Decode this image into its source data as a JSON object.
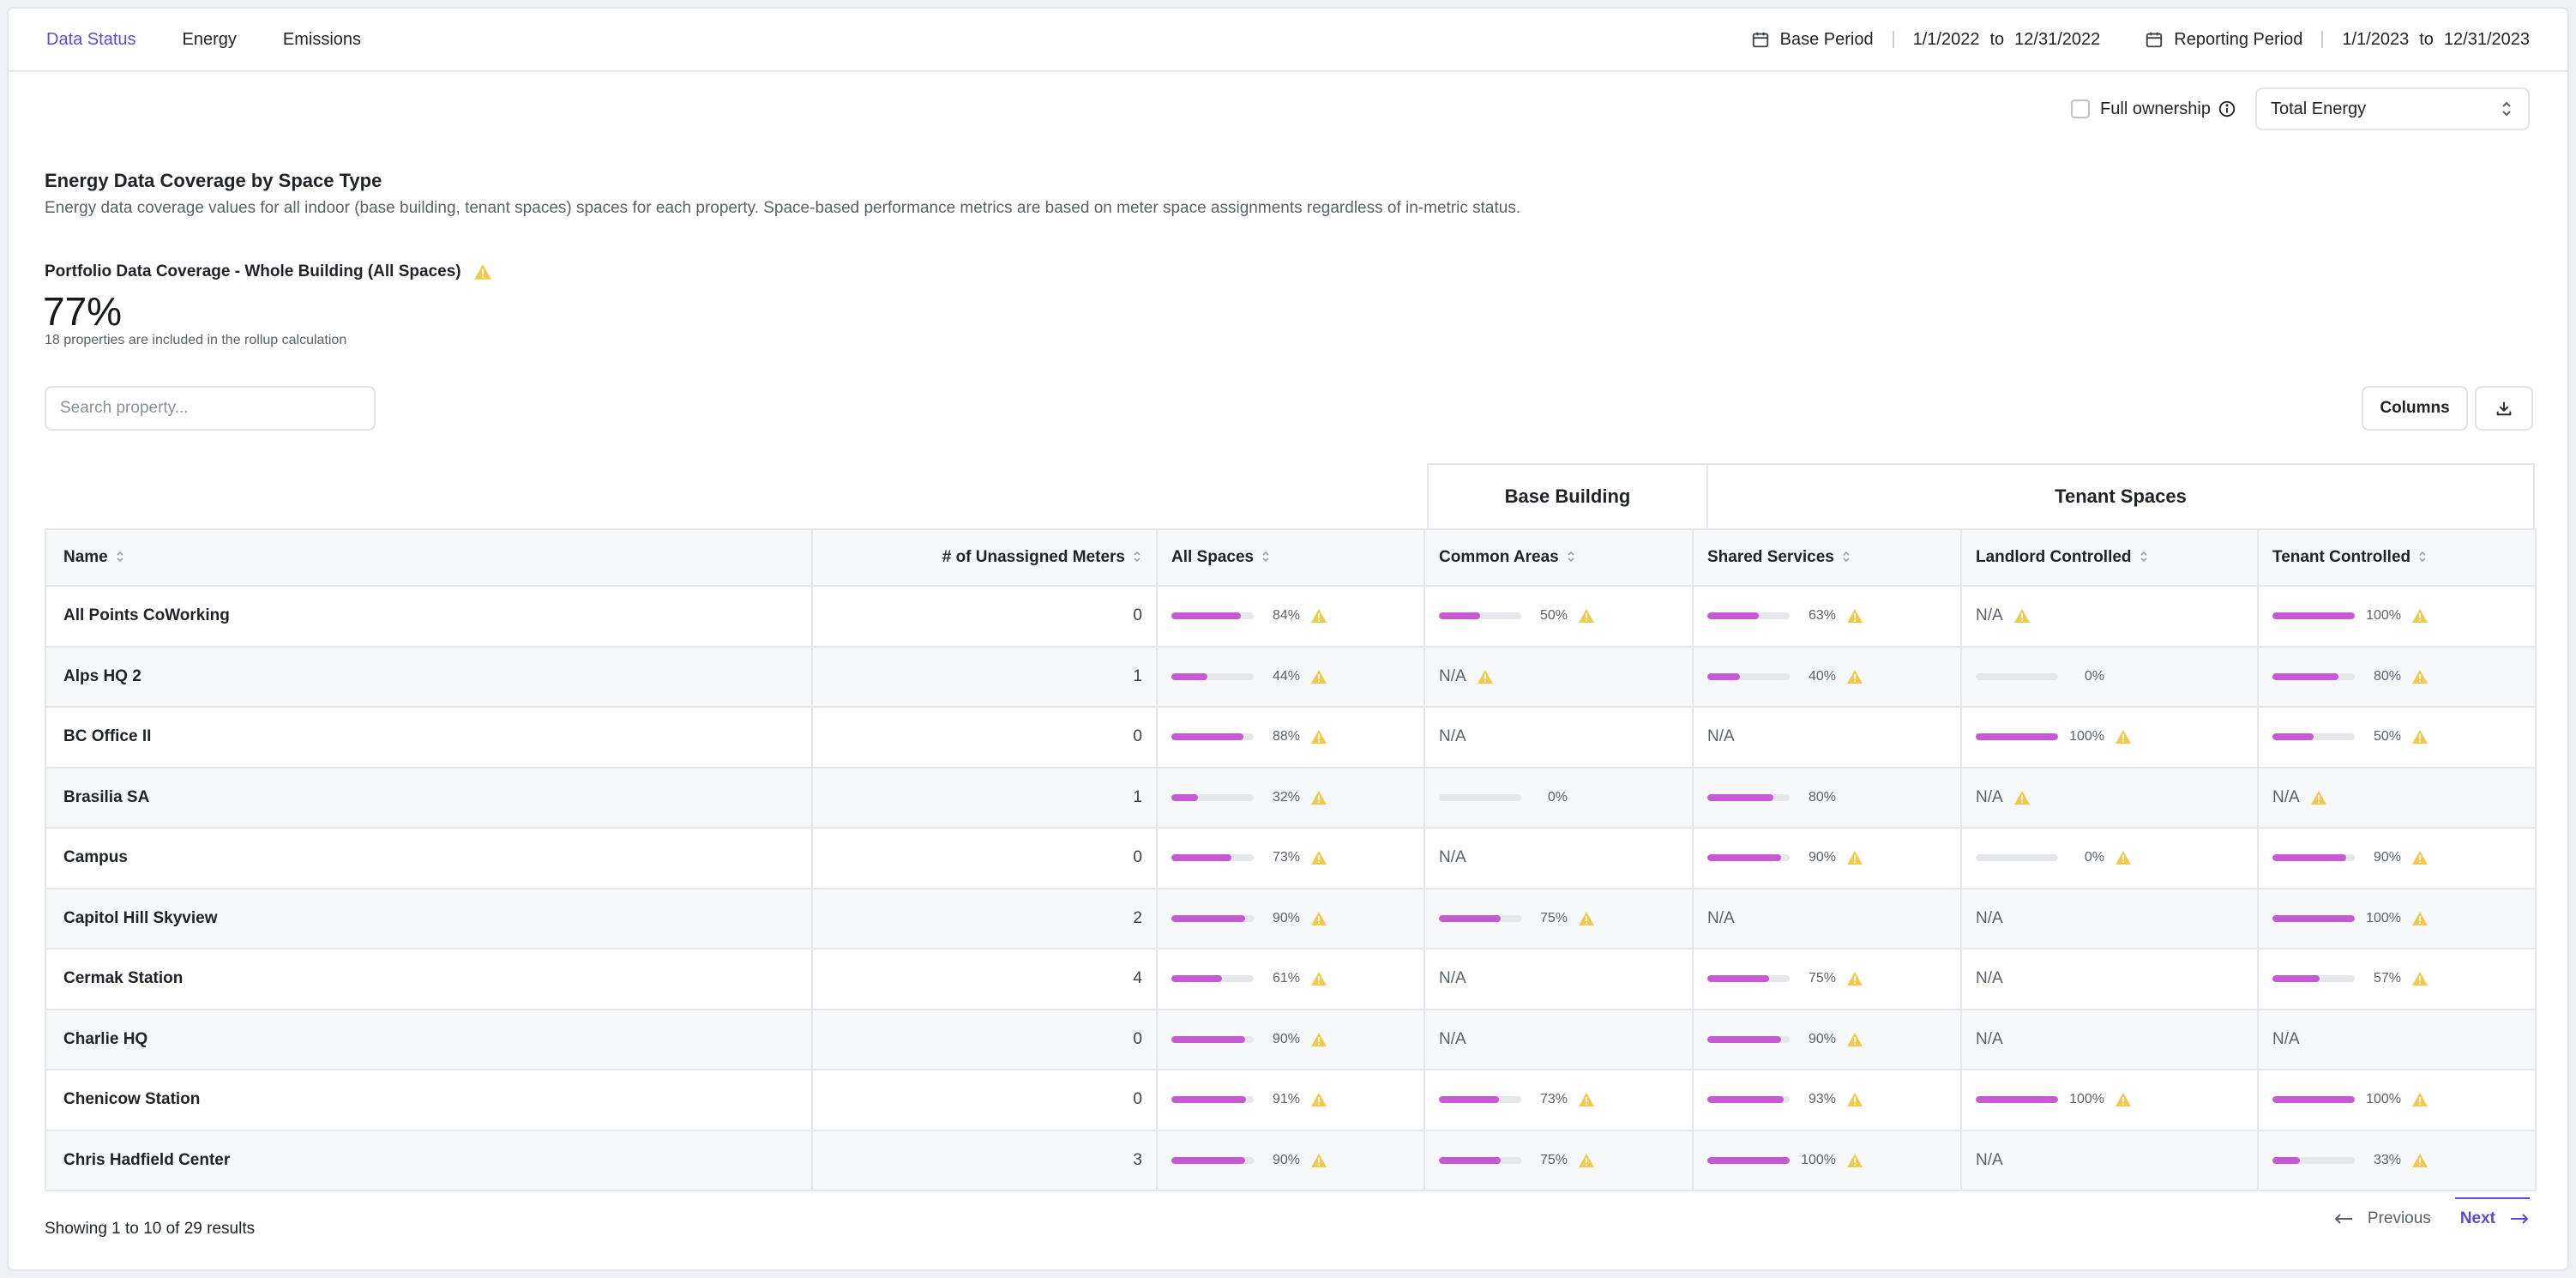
{
  "nav": {
    "tabs": [
      {
        "label": "Data Status",
        "active": true
      },
      {
        "label": "Energy",
        "active": false
      },
      {
        "label": "Emissions",
        "active": false
      }
    ],
    "base_period": {
      "label": "Base Period",
      "from": "1/1/2022",
      "to_word": "to",
      "to": "12/31/2022"
    },
    "reporting_period": {
      "label": "Reporting Period",
      "from": "1/1/2023",
      "to_word": "to",
      "to": "12/31/2023"
    }
  },
  "filters": {
    "full_ownership_label": "Full ownership",
    "full_ownership_checked": false,
    "metric_selected": "Total Energy"
  },
  "section": {
    "title": "Energy Data Coverage by Space Type",
    "description": "Energy data coverage values for all indoor (base building, tenant spaces) spaces for each property. Space-based performance metrics are based on meter space assignments regardless of in-metric status."
  },
  "portfolio": {
    "label": "Portfolio Data Coverage - Whole Building (All Spaces)",
    "value": "77%",
    "note": "18 properties are included in the rollup calculation"
  },
  "toolbar": {
    "search_placeholder": "Search property...",
    "columns_label": "Columns",
    "download_icon": "download-icon"
  },
  "table": {
    "groups": {
      "base_building": "Base Building",
      "tenant_spaces": "Tenant Spaces"
    },
    "headers": {
      "name": "Name",
      "unassigned": "# of Unassigned Meters",
      "all_spaces": "All Spaces",
      "common_areas": "Common Areas",
      "shared_services": "Shared Services",
      "landlord_controlled": "Landlord Controlled",
      "tenant_controlled": "Tenant Controlled"
    },
    "rows": [
      {
        "name": "All Points CoWorking",
        "unassigned": "0",
        "all": {
          "pct": 84,
          "warn": true
        },
        "common": {
          "pct": 50,
          "warn": true
        },
        "shared": {
          "pct": 63,
          "warn": true
        },
        "landlord": {
          "na": true,
          "warn": true
        },
        "tenant": {
          "pct": 100,
          "warn": true
        }
      },
      {
        "name": "Alps HQ 2",
        "unassigned": "1",
        "all": {
          "pct": 44,
          "warn": true
        },
        "common": {
          "na": true,
          "warn": true
        },
        "shared": {
          "pct": 40,
          "warn": true
        },
        "landlord": {
          "pct": 0,
          "warn": false
        },
        "tenant": {
          "pct": 80,
          "warn": true
        }
      },
      {
        "name": "BC Office II",
        "unassigned": "0",
        "all": {
          "pct": 88,
          "warn": true
        },
        "common": {
          "na": true,
          "warn": false
        },
        "shared": {
          "na": true,
          "warn": false
        },
        "landlord": {
          "pct": 100,
          "warn": true
        },
        "tenant": {
          "pct": 50,
          "warn": true
        }
      },
      {
        "name": "Brasilia SA",
        "unassigned": "1",
        "all": {
          "pct": 32,
          "warn": true
        },
        "common": {
          "pct": 0,
          "warn": false
        },
        "shared": {
          "pct": 80,
          "warn": false
        },
        "landlord": {
          "na": true,
          "warn": true
        },
        "tenant": {
          "na": true,
          "warn": true
        }
      },
      {
        "name": "Campus",
        "unassigned": "0",
        "all": {
          "pct": 73,
          "warn": true
        },
        "common": {
          "na": true,
          "warn": false
        },
        "shared": {
          "pct": 90,
          "warn": true
        },
        "landlord": {
          "pct": 0,
          "warn": true
        },
        "tenant": {
          "pct": 90,
          "warn": true
        }
      },
      {
        "name": "Capitol Hill Skyview",
        "unassigned": "2",
        "all": {
          "pct": 90,
          "warn": true
        },
        "common": {
          "pct": 75,
          "warn": true
        },
        "shared": {
          "na": true,
          "warn": false
        },
        "landlord": {
          "na": true,
          "warn": false
        },
        "tenant": {
          "pct": 100,
          "warn": true
        }
      },
      {
        "name": "Cermak Station",
        "unassigned": "4",
        "all": {
          "pct": 61,
          "warn": true
        },
        "common": {
          "na": true,
          "warn": false
        },
        "shared": {
          "pct": 75,
          "warn": true
        },
        "landlord": {
          "na": true,
          "warn": false
        },
        "tenant": {
          "pct": 57,
          "warn": true
        }
      },
      {
        "name": "Charlie HQ",
        "unassigned": "0",
        "all": {
          "pct": 90,
          "warn": true
        },
        "common": {
          "na": true,
          "warn": false
        },
        "shared": {
          "pct": 90,
          "warn": true
        },
        "landlord": {
          "na": true,
          "warn": false
        },
        "tenant": {
          "na": true,
          "warn": false
        }
      },
      {
        "name": "Chenicow Station",
        "unassigned": "0",
        "all": {
          "pct": 91,
          "warn": true
        },
        "common": {
          "pct": 73,
          "warn": true
        },
        "shared": {
          "pct": 93,
          "warn": true
        },
        "landlord": {
          "pct": 100,
          "warn": true
        },
        "tenant": {
          "pct": 100,
          "warn": true
        }
      },
      {
        "name": "Chris Hadfield Center",
        "unassigned": "3",
        "all": {
          "pct": 90,
          "warn": true
        },
        "common": {
          "pct": 75,
          "warn": true
        },
        "shared": {
          "pct": 100,
          "warn": true
        },
        "landlord": {
          "na": true,
          "warn": false
        },
        "tenant": {
          "pct": 33,
          "warn": true
        }
      }
    ],
    "na_text": "N/A"
  },
  "footer": {
    "showing": "Showing",
    "from": "1",
    "to_word": "to",
    "to": "10",
    "of_word": "of",
    "total": "29",
    "results": "results",
    "previous_label": "Previous",
    "next_label": "Next"
  },
  "colors": {
    "accent": "#5b4ad6",
    "bar_fill": "#c65ad3",
    "warning": "#f2c94c"
  }
}
